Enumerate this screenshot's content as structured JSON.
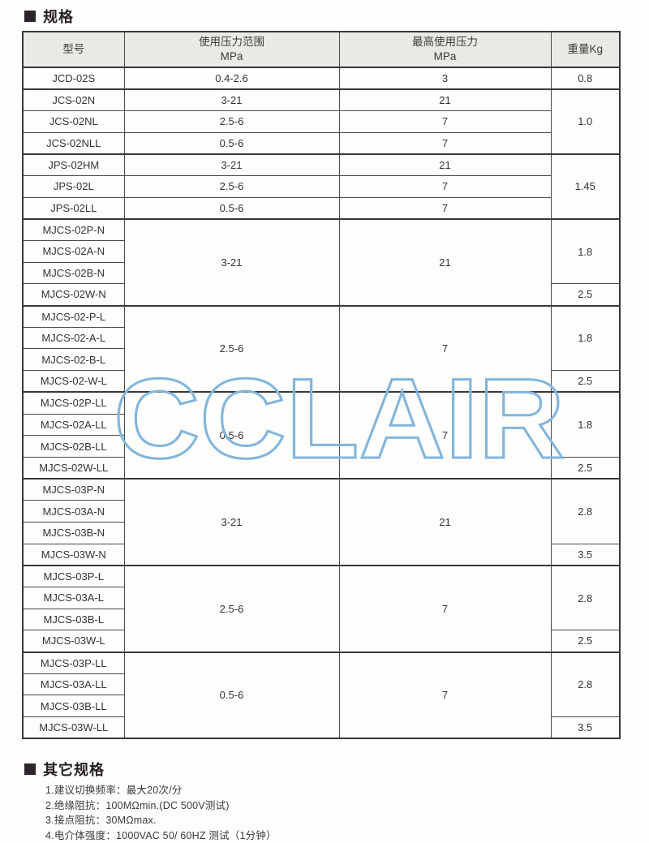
{
  "sections": {
    "spec_title": "规格",
    "other_title": "其它规格"
  },
  "table": {
    "headers": {
      "model": "型号",
      "range_line1": "使用压力范围",
      "range_line2": "MPa",
      "max_line1": "最高使用压力",
      "max_line2": "MPa",
      "weight": "重量Kg"
    },
    "rows": [
      {
        "model": "JCD-02S",
        "range": "0.4-2.6",
        "max": "3",
        "weight": "0.8"
      },
      {
        "model": "JCS-02N",
        "range": "3-21",
        "max": "21",
        "weight": "1.0"
      },
      {
        "model": "JCS-02NL",
        "range": "2.5-6",
        "max": "7"
      },
      {
        "model": "JCS-02NLL",
        "range": "0.5-6",
        "max": "7"
      },
      {
        "model": "JPS-02HM",
        "range": "3-21",
        "max": "21",
        "weight": "1.45"
      },
      {
        "model": "JPS-02L",
        "range": "2.5-6",
        "max": "7"
      },
      {
        "model": "JPS-02LL",
        "range": "0.5-6",
        "max": "7"
      },
      {
        "model": "MJCS-02P-N",
        "range": "3-21",
        "max": "21",
        "weight": "1.8"
      },
      {
        "model": "MJCS-02A-N"
      },
      {
        "model": "MJCS-02B-N"
      },
      {
        "model": "MJCS-02W-N",
        "weight": "2.5"
      },
      {
        "model": "MJCS-02-P-L",
        "range": "2.5-6",
        "max": "7",
        "weight": "1.8"
      },
      {
        "model": "MJCS-02-A-L"
      },
      {
        "model": "MJCS-02-B-L"
      },
      {
        "model": "MJCS-02-W-L",
        "weight": "2.5"
      },
      {
        "model": "MJCS-02P-LL",
        "range": "0.5-6",
        "max": "7",
        "weight": "1.8"
      },
      {
        "model": "MJCS-02A-LL"
      },
      {
        "model": "MJCS-02B-LL"
      },
      {
        "model": "MJCS-02W-LL",
        "weight": "2.5"
      },
      {
        "model": "MJCS-03P-N",
        "range": "3-21",
        "max": "21",
        "weight": "2.8"
      },
      {
        "model": "MJCS-03A-N"
      },
      {
        "model": "MJCS-03B-N"
      },
      {
        "model": "MJCS-03W-N",
        "weight": "3.5"
      },
      {
        "model": "MJCS-03P-L",
        "range": "2.5-6",
        "max": "7",
        "weight": "2.8"
      },
      {
        "model": "MJCS-03A-L"
      },
      {
        "model": "MJCS-03B-L"
      },
      {
        "model": "MJCS-03W-L",
        "weight": "2.5"
      },
      {
        "model": "MJCS-03P-LL",
        "range": "0.5-6",
        "max": "7",
        "weight": "2.8"
      },
      {
        "model": "MJCS-03A-LL"
      },
      {
        "model": "MJCS-03B-LL"
      },
      {
        "model": "MJCS-03W-LL",
        "weight": "3.5"
      }
    ]
  },
  "watermark": {
    "text": "CCLAIR",
    "color": "#82b5dc"
  },
  "other_specs": {
    "items": [
      "1.建议切换频率：最大20次/分",
      "2.绝缘阻抗：100MΩmin.(DC 500V测试)",
      "3.接点阻抗：30MΩmax.",
      "4.电介体强度：1000VAC 50/ 60HZ 测试（1分钟）"
    ]
  }
}
